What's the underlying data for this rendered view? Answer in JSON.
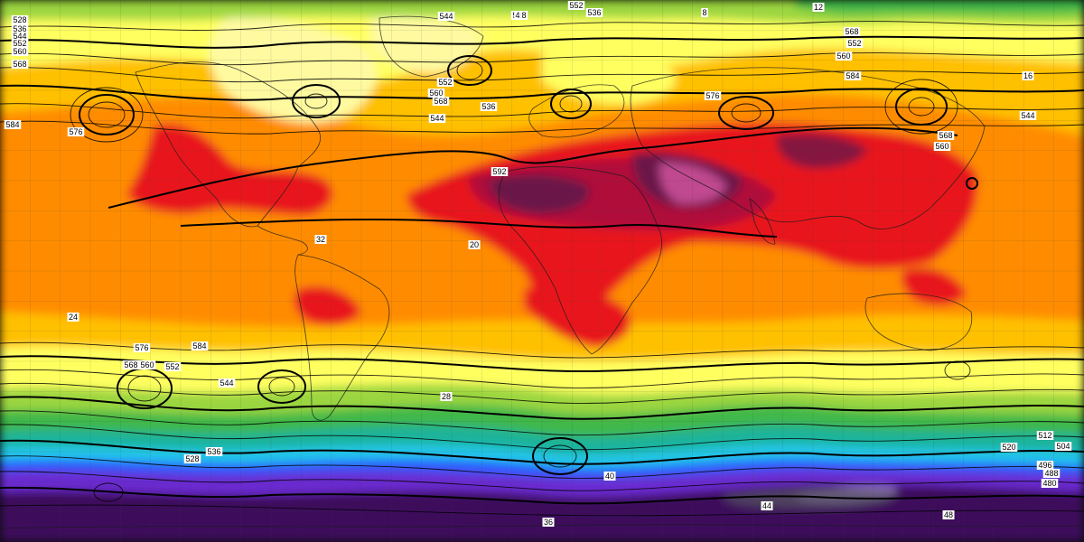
{
  "map": {
    "contour_labels": [
      "528",
      "536",
      "544",
      "552",
      "560",
      "568",
      "584",
      "576",
      "592",
      "544",
      "552",
      "560",
      "568",
      "544",
      "536",
      "568",
      "552",
      "560",
      "584",
      "576",
      "568",
      "560",
      "544",
      "552",
      "536",
      "528",
      "576",
      "584",
      "568",
      "560",
      "552",
      "544",
      "536",
      "528",
      "520",
      "512",
      "504",
      "496",
      "488",
      "480",
      "4",
      "8",
      "12",
      "16",
      "20",
      "24",
      "28",
      "32",
      "36",
      "40",
      "44",
      "48"
    ],
    "colors": {
      "deep_purple": "#3d0a5c",
      "violet": "#6a2bd0",
      "blue": "#2a5bff",
      "cyan": "#22c6e8",
      "teal": "#1cb39a",
      "green": "#3fb84a",
      "light_green": "#9bd640",
      "yellow": "#ffff60",
      "light_orange": "#ffc000",
      "orange": "#ff8c00",
      "dark_orange": "#ff6a00",
      "red": "#e8141c",
      "crimson": "#b0103a",
      "maroon": "#6a1848",
      "magenta": "#c04890",
      "pale_yellow": "#fffaa0",
      "pale_violet": "#a080d0"
    }
  }
}
